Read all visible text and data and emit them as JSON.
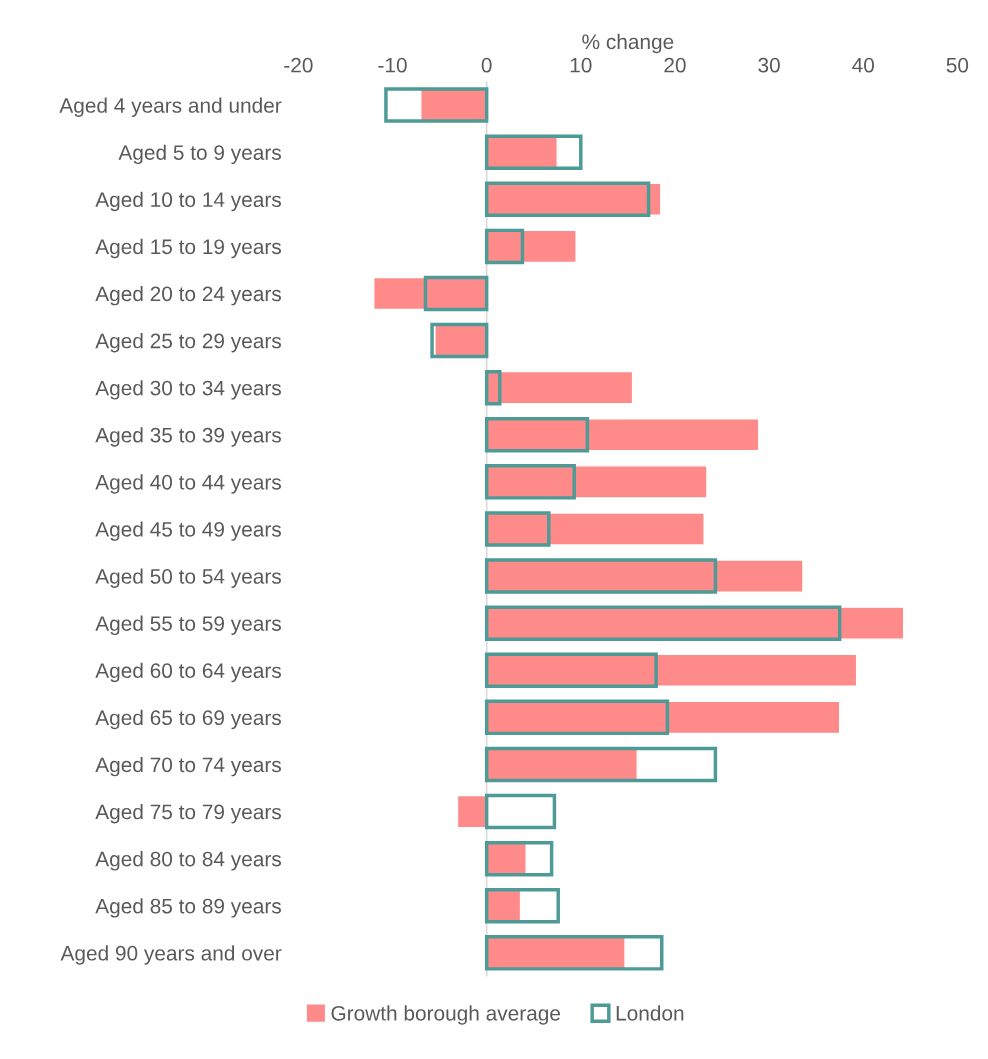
{
  "chart_data": {
    "type": "bar",
    "orientation": "horizontal",
    "xlabel": "% change",
    "categories": [
      "Aged 4 years and under",
      "Aged 5 to 9 years",
      "Aged 10 to 14 years",
      "Aged 15 to 19 years",
      "Aged 20 to 24 years",
      "Aged 25 to 29 years",
      "Aged 30 to 34 years",
      "Aged 35 to 39 years",
      "Aged 40 to 44 years",
      "Aged 45 to 49 years",
      "Aged 50 to 54 years",
      "Aged 55 to 59 years",
      "Aged 60 to 64 years",
      "Aged 65 to 69 years",
      "Aged 70 to 74 years",
      "Aged 75 to 79 years",
      "Aged 80 to 84 years",
      "Aged 85 to 89 years",
      "Aged 90 years and over"
    ],
    "series": [
      {
        "name": "Growth borough average",
        "color": "#ff8a8a",
        "values": [
          -7.0,
          7.5,
          18.5,
          9.5,
          -12.0,
          -5.5,
          15.5,
          28.9,
          23.4,
          23.1,
          33.6,
          44.3,
          39.3,
          37.5,
          16.0,
          -3.1,
          4.2,
          3.6,
          14.7
        ]
      },
      {
        "name": "London",
        "color": "#4e9a96",
        "values": [
          -10.7,
          10.0,
          17.2,
          3.8,
          -6.5,
          -5.8,
          1.4,
          10.7,
          9.3,
          6.6,
          24.3,
          37.5,
          18.0,
          19.2,
          24.3,
          7.2,
          6.9,
          7.6,
          18.6
        ]
      }
    ],
    "xlim": [
      -20,
      50
    ],
    "xticks": [
      -20,
      -10,
      0,
      10,
      20,
      30,
      40,
      50
    ],
    "ref_lines": [
      {
        "axis": "x",
        "value": 0,
        "color": "#d9d9d9"
      }
    ],
    "grid": false,
    "legend": "bottom"
  }
}
